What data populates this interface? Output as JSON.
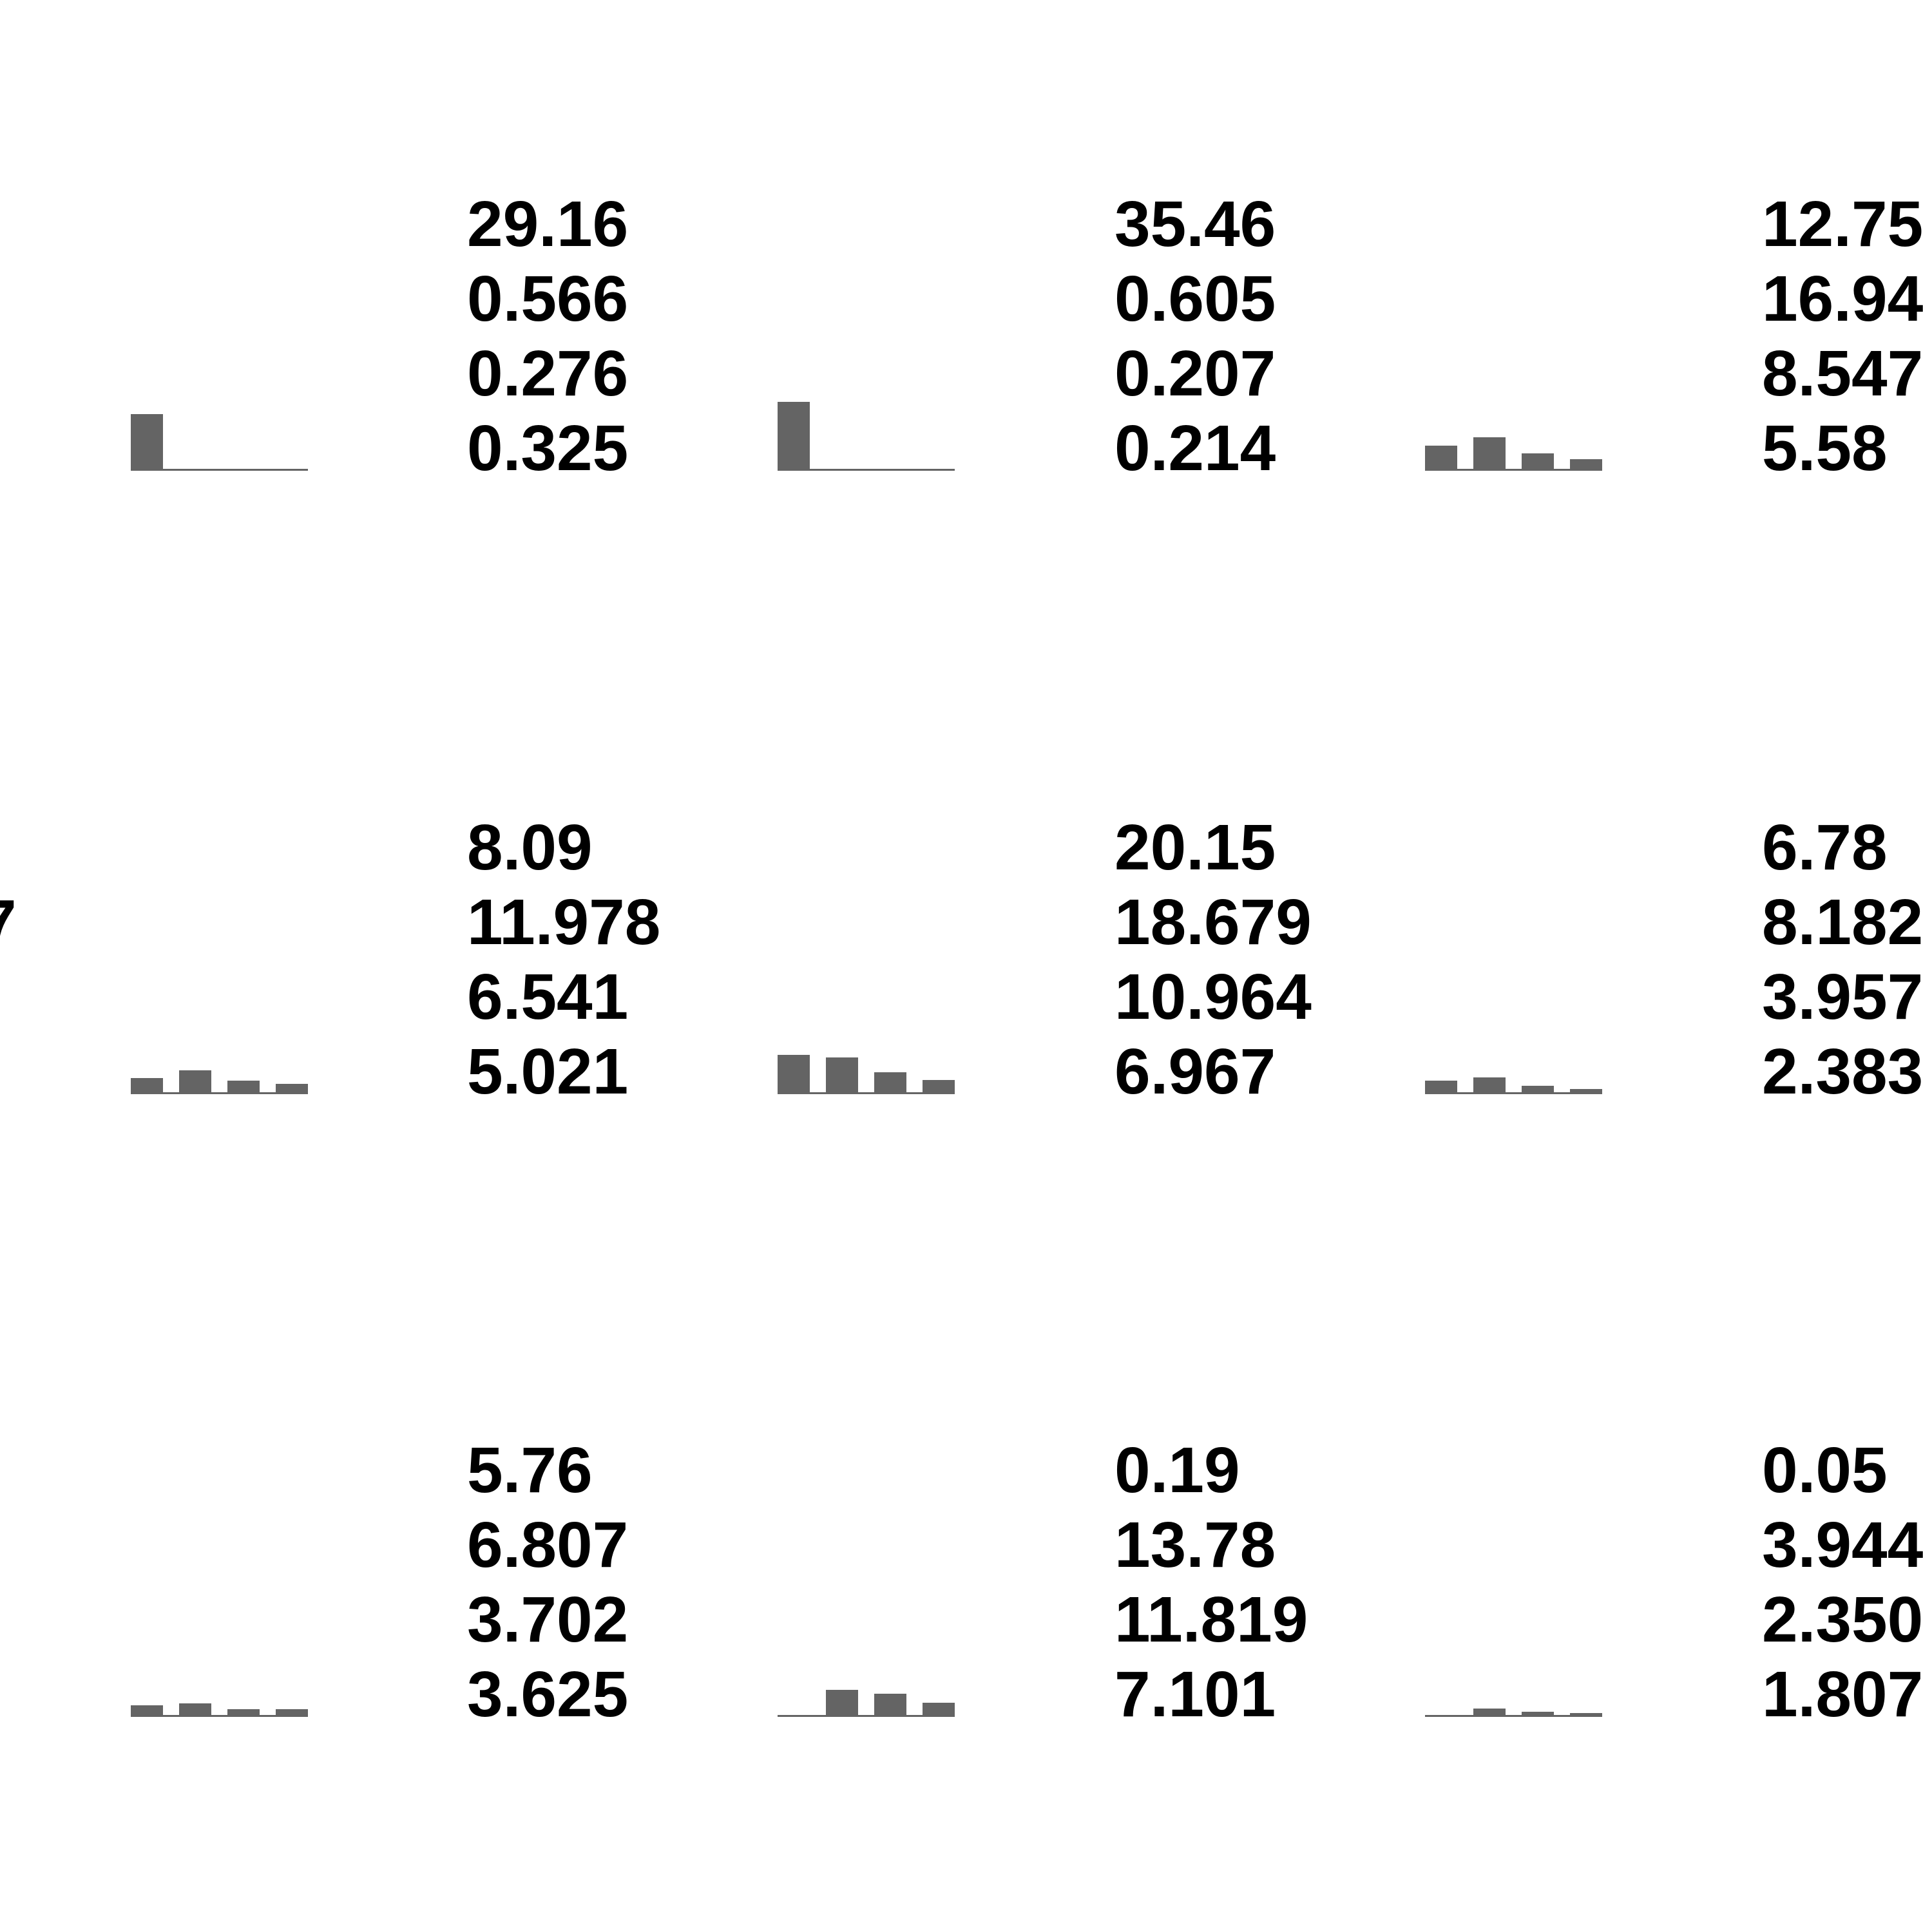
{
  "colors": {
    "background": "#ffffff",
    "bar": "#646464",
    "text": "#000000"
  },
  "chart_data": [
    {
      "type": "bar",
      "values": [
        29.16,
        0.566,
        0.276,
        0.325
      ],
      "ylim": [
        0,
        40
      ]
    },
    {
      "type": "bar",
      "values": [
        35.46,
        0.605,
        0.207,
        0.214
      ],
      "ylim": [
        0,
        40
      ]
    },
    {
      "type": "bar",
      "values": [
        12.75,
        16.94,
        8.547,
        5.58
      ],
      "ylim": [
        0,
        40
      ]
    },
    {
      "type": "bar",
      "values": [
        8.09,
        11.978,
        6.541,
        5.021
      ],
      "ylim": [
        0,
        40
      ]
    },
    {
      "type": "bar",
      "values": [
        20.15,
        18.679,
        10.964,
        6.967
      ],
      "ylim": [
        0,
        40
      ]
    },
    {
      "type": "bar",
      "values": [
        6.78,
        8.182,
        3.957,
        2.383
      ],
      "ylim": [
        0,
        40
      ]
    },
    {
      "type": "bar",
      "values": [
        5.76,
        6.807,
        3.702,
        3.625
      ],
      "ylim": [
        0,
        40
      ]
    },
    {
      "type": "bar",
      "values": [
        0.19,
        13.78,
        11.819,
        7.101
      ],
      "ylim": [
        0,
        40
      ]
    },
    {
      "type": "bar",
      "values": [
        0.05,
        3.944,
        2.35,
        1.807
      ],
      "ylim": [
        0,
        40
      ]
    }
  ],
  "labels": [
    [
      "29.16",
      "0.566",
      "0.276",
      "0.325"
    ],
    [
      "35.46",
      "0.605",
      "0.207",
      "0.214"
    ],
    [
      "12.75",
      "16.94",
      "8.547",
      "5.58"
    ],
    [
      "8.09",
      "11.978",
      "6.541",
      "5.021"
    ],
    [
      "20.15",
      "18.679",
      "10.964",
      "6.967"
    ],
    [
      "6.78",
      "8.182",
      "3.957",
      "2.383"
    ],
    [
      "5.76",
      "6.807",
      "3.702",
      "3.625"
    ],
    [
      "0.19",
      "13.78",
      "11.819",
      "7.101"
    ],
    [
      "0.05",
      "3.944",
      "2.350",
      "1.807"
    ]
  ],
  "edge_label": "7"
}
